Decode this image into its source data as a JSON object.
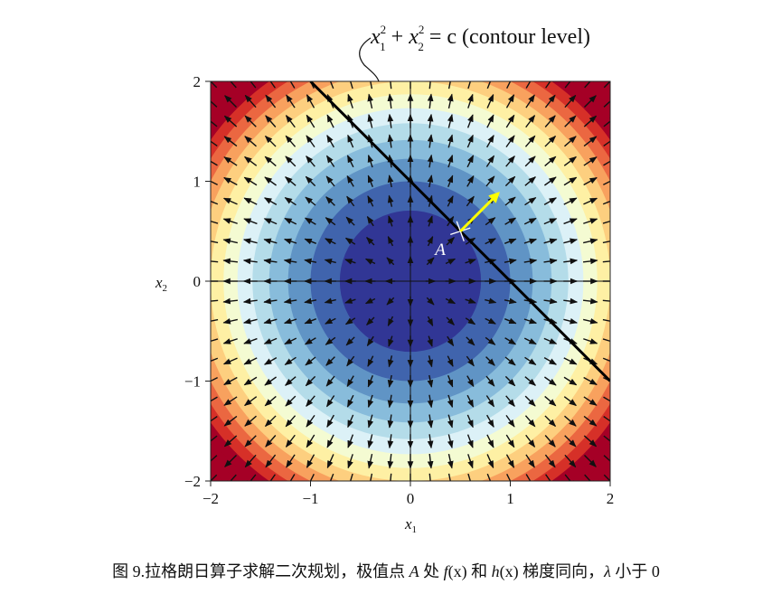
{
  "chart_data": {
    "type": "contour",
    "function": "x1^2 + x2^2",
    "xlabel_base": "x",
    "xlabel_sub": "1",
    "ylabel_base": "x",
    "ylabel_sub": "2",
    "xlim": [
      -2,
      2
    ],
    "ylim": [
      -2,
      2
    ],
    "xticks": [
      -2,
      -1,
      0,
      1,
      2
    ],
    "yticks": [
      -2,
      -1,
      0,
      1,
      2
    ],
    "xtick_labels": [
      "−2",
      "−1",
      "0",
      "1",
      "2"
    ],
    "ytick_labels": [
      "−2",
      "−1",
      "0",
      "1",
      "2"
    ],
    "contour_levels": [
      0,
      0.5,
      1,
      1.5,
      2,
      2.5,
      3,
      3.5,
      4,
      4.5,
      5,
      5.5,
      6,
      6.5,
      7,
      7.5,
      8
    ],
    "colormap": "RdYlBu_r",
    "colors": [
      "#313695",
      "#4064ad",
      "#6094c5",
      "#88bcdb",
      "#b4dce9",
      "#dcf1f7",
      "#f4fbd2",
      "#fef0a4",
      "#fdcf7f",
      "#f8a15e",
      "#eb6741",
      "#d63028",
      "#a50026"
    ],
    "quiver_grid_step": 0.2,
    "constraint_line": {
      "equation": "x1 + x2 = 1",
      "points": [
        [
          -1,
          2
        ],
        [
          2,
          -1
        ]
      ]
    },
    "point_A": {
      "label": "A",
      "x": 0.5,
      "y": 0.5
    },
    "gradient_arrow": {
      "from": [
        0.5,
        0.5
      ],
      "to": [
        0.88,
        0.88
      ],
      "color": "#ffff00"
    },
    "annotation": {
      "suffix": " = c (contour level)"
    }
  },
  "caption": {
    "prefix": "图 9.拉格朗日算子求解二次规划，极值点 ",
    "point": "A",
    "mid1": " 处 ",
    "f": "f",
    "fx": "(x)",
    "mid2": " 和 ",
    "h": "h",
    "hx": "(x)",
    "mid3": " 梯度同向，",
    "lambda": "λ",
    "suffix": " 小于 0"
  }
}
